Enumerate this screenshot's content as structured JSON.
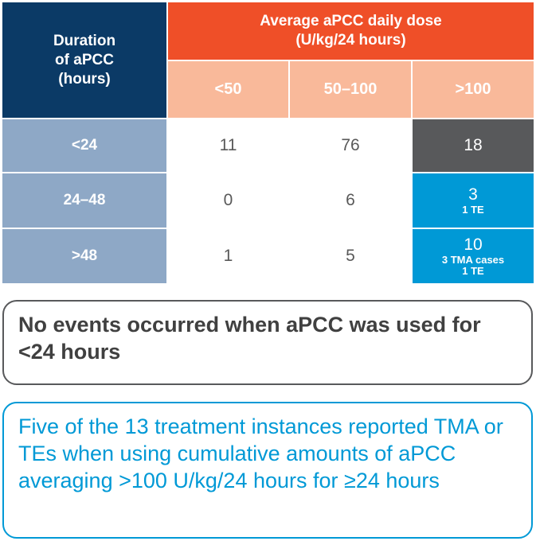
{
  "table": {
    "duration_header_lines": [
      "Duration",
      "of aPCC",
      "(hours)"
    ],
    "dose_header_lines": [
      "Average aPCC daily dose",
      "(U/kg/24 hours)"
    ],
    "dose_columns": [
      "<50",
      "50–100",
      ">100"
    ],
    "rows": [
      {
        "label": "<24",
        "values": [
          "11",
          "76",
          "18"
        ],
        "notes": []
      },
      {
        "label": "24–48",
        "values": [
          "0",
          "6",
          "3"
        ],
        "notes": [
          "1 TE"
        ]
      },
      {
        "label": ">48",
        "values": [
          "1",
          "5",
          "10"
        ],
        "notes": [
          "3 TMA cases",
          "1 TE"
        ]
      }
    ]
  },
  "callouts": {
    "no_events": "No events occurred when aPCC was used for <24 hours",
    "five_of_13": "Five of the 13 treatment instances reported TMA or TEs when using cumulative amounts of aPCC averaging >100 U/kg/24 hours for ≥24 hours"
  },
  "colors": {
    "navy": "#0b3a66",
    "orange": "#ef4f28",
    "peach": "#f9b99a",
    "row_header": "#8ea8c6",
    "dark_gray": "#58595b",
    "blue": "#0099d6"
  }
}
